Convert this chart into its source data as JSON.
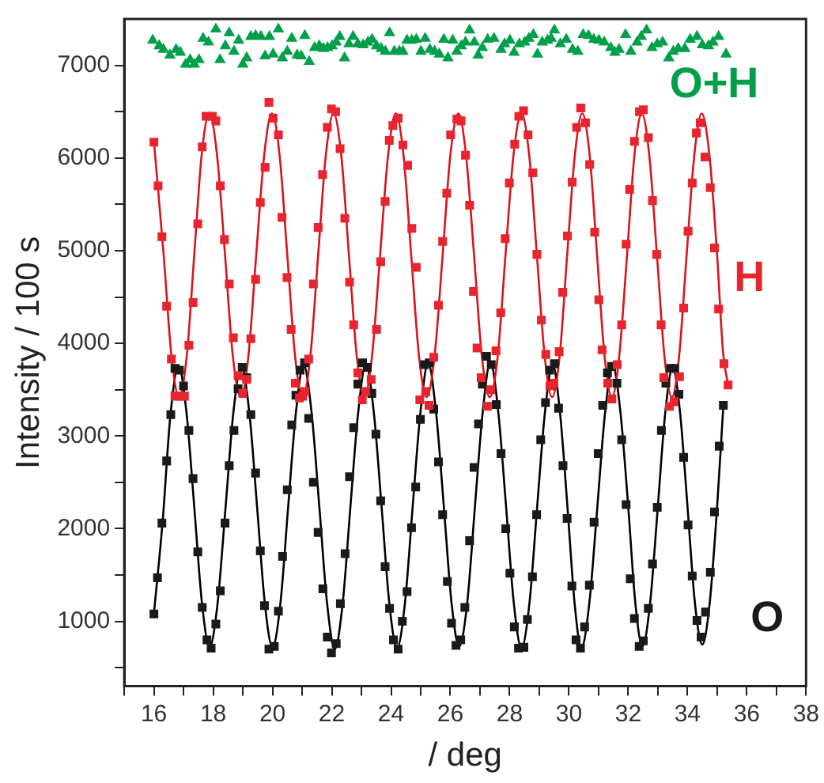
{
  "chart_data": {
    "type": "scatter",
    "xlabel": "/ deg",
    "ylabel": "Intensity / 100 s",
    "xlim": [
      15,
      38
    ],
    "ylim": [
      300,
      7500
    ],
    "xticks": [
      {
        "value": 15,
        "label": null
      },
      16,
      {
        "value": 17,
        "label": null
      },
      18,
      {
        "value": 19,
        "label": null
      },
      20,
      {
        "value": 21,
        "label": null
      },
      22,
      {
        "value": 23,
        "label": null
      },
      24,
      {
        "value": 25,
        "label": null
      },
      26,
      {
        "value": 27,
        "label": null
      },
      28,
      {
        "value": 29,
        "label": null
      },
      30,
      {
        "value": 31,
        "label": null
      },
      32,
      {
        "value": 33,
        "label": null
      },
      34,
      {
        "value": 35,
        "label": null
      },
      36,
      {
        "value": 37,
        "label": null
      },
      38
    ],
    "yticks": [
      {
        "value": 500,
        "label": null
      },
      1000,
      {
        "value": 1500,
        "label": null
      },
      2000,
      {
        "value": 2500,
        "label": null
      },
      3000,
      {
        "value": 3500,
        "label": null
      },
      4000,
      {
        "value": 4500,
        "label": null
      },
      5000,
      {
        "value": 5500,
        "label": null
      },
      6000,
      {
        "value": 6500,
        "label": null
      },
      7000
    ],
    "grid": false,
    "legend": "right",
    "series": [
      {
        "name": "O+H",
        "marker": "triangle",
        "color": "#00a04a",
        "x": [
          15.96,
          16.18,
          16.32,
          16.54,
          16.75,
          16.89,
          17.07,
          17.22,
          17.36,
          17.52,
          17.66,
          17.84,
          18.09,
          18.23,
          18.41,
          18.54,
          18.7,
          18.86,
          19.0,
          19.13,
          19.27,
          19.43,
          19.61,
          19.75,
          19.9,
          20.02,
          20.2,
          20.33,
          20.5,
          20.65,
          20.83,
          20.97,
          21.09,
          21.24,
          21.42,
          21.58,
          21.72,
          21.86,
          22.01,
          22.15,
          22.27,
          22.43,
          22.58,
          22.72,
          22.88,
          23.06,
          23.22,
          23.36,
          23.51,
          23.67,
          23.81,
          23.95,
          24.11,
          24.28,
          24.4,
          24.54,
          24.7,
          24.85,
          25.01,
          25.15,
          25.31,
          25.47,
          25.63,
          25.78,
          25.92,
          26.08,
          26.22,
          26.37,
          26.51,
          26.65,
          26.81,
          26.94,
          27.08,
          27.26,
          27.47,
          27.71,
          27.83,
          28.01,
          28.15,
          28.33,
          28.51,
          28.65,
          28.8,
          28.94,
          29.1,
          29.28,
          29.4,
          29.51,
          29.71,
          29.91,
          30.12,
          30.3,
          30.48,
          30.66,
          30.84,
          31.01,
          31.19,
          31.41,
          31.55,
          31.69,
          31.91,
          32.09,
          32.3,
          32.44,
          32.62,
          32.8,
          32.98,
          33.16,
          33.37,
          33.52,
          33.69,
          33.91,
          34.09,
          34.32,
          34.5,
          34.71,
          34.86,
          35.05,
          35.3
        ],
        "values": [
          7270,
          7210,
          7170,
          7110,
          7170,
          7140,
          7010,
          7060,
          7010,
          7060,
          7290,
          7250,
          7390,
          7060,
          7210,
          7350,
          7150,
          7270,
          7010,
          7080,
          7310,
          7320,
          7310,
          7100,
          7310,
          7120,
          7390,
          7080,
          7150,
          7290,
          7110,
          7100,
          7320,
          7040,
          7190,
          7210,
          7180,
          7190,
          7210,
          7250,
          7310,
          7080,
          7230,
          7310,
          7230,
          7220,
          7250,
          7280,
          7210,
          7180,
          7150,
          7350,
          7150,
          7150,
          7150,
          7270,
          7270,
          7280,
          7150,
          7290,
          7170,
          7150,
          7120,
          7280,
          7080,
          7270,
          7150,
          7210,
          7250,
          7380,
          7250,
          7110,
          7190,
          7280,
          7290,
          7170,
          7230,
          7270,
          7140,
          7230,
          7250,
          7290,
          7330,
          7120,
          7250,
          7270,
          7290,
          7380,
          7230,
          7280,
          7170,
          7150,
          7330,
          7320,
          7280,
          7270,
          7250,
          7190,
          7140,
          7170,
          7330,
          7150,
          7250,
          7310,
          7380,
          7190,
          7230,
          7250,
          7080,
          7150,
          7180,
          7180,
          7280,
          7310,
          7220,
          7210,
          7250,
          7310,
          7120
        ]
      },
      {
        "name": "H",
        "marker": "square",
        "color": "#e8252e",
        "x": [
          16.0,
          16.14,
          16.27,
          16.43,
          16.59,
          16.71,
          16.89,
          17.03,
          17.18,
          17.32,
          17.48,
          17.63,
          17.76,
          17.97,
          18.09,
          18.24,
          18.38,
          18.54,
          18.68,
          18.84,
          19.0,
          19.13,
          19.27,
          19.43,
          19.59,
          19.75,
          19.88,
          20.02,
          20.2,
          20.32,
          20.49,
          20.63,
          20.77,
          20.91,
          21.02,
          21.09,
          21.22,
          21.38,
          21.54,
          21.69,
          21.85,
          21.99,
          22.13,
          22.28,
          22.44,
          22.6,
          22.74,
          22.88,
          23.03,
          23.15,
          23.33,
          23.51,
          23.65,
          23.8,
          23.94,
          24.06,
          24.24,
          24.4,
          24.56,
          24.7,
          24.85,
          24.97,
          25.17,
          25.28,
          25.44,
          25.6,
          25.74,
          25.88,
          26.01,
          26.22,
          26.36,
          26.51,
          26.65,
          26.78,
          26.9,
          27.04,
          27.25,
          27.36,
          27.54,
          27.7,
          27.85,
          27.99,
          28.17,
          28.31,
          28.47,
          28.62,
          28.78,
          28.92,
          29.07,
          29.22,
          29.36,
          29.49,
          29.67,
          29.79,
          29.95,
          30.11,
          30.26,
          30.4,
          30.56,
          30.7,
          30.87,
          31.01,
          31.12,
          31.31,
          31.45,
          31.63,
          31.78,
          31.93,
          32.05,
          32.21,
          32.38,
          32.51,
          32.68,
          32.82,
          32.96,
          33.11,
          33.2,
          33.39,
          33.55,
          33.73,
          33.87,
          34.02,
          34.16,
          34.3,
          34.43,
          34.59,
          34.77,
          34.91,
          35.05,
          35.23,
          35.37
        ],
        "values": [
          6170,
          5700,
          5150,
          4400,
          3830,
          3430,
          3430,
          3430,
          3980,
          4440,
          5290,
          6120,
          6450,
          6450,
          6400,
          5700,
          5120,
          4640,
          4060,
          3650,
          3460,
          3610,
          4050,
          4690,
          5520,
          5900,
          6600,
          6430,
          6250,
          5360,
          4710,
          4150,
          3570,
          3410,
          3430,
          3480,
          3830,
          4640,
          5250,
          5820,
          6330,
          6530,
          6500,
          6100,
          5350,
          4660,
          4200,
          3680,
          3390,
          3480,
          3610,
          4150,
          4880,
          5530,
          6190,
          6350,
          6430,
          6140,
          5920,
          5240,
          4820,
          3390,
          3480,
          3330,
          3850,
          4410,
          5100,
          5620,
          6250,
          6420,
          6400,
          6030,
          5490,
          4560,
          3950,
          3630,
          3320,
          3500,
          3920,
          4330,
          5130,
          5730,
          6150,
          6450,
          6510,
          6250,
          5840,
          4960,
          4250,
          3880,
          3540,
          3570,
          3910,
          4550,
          5160,
          5740,
          6330,
          6540,
          6380,
          5930,
          5200,
          4470,
          3930,
          3570,
          3400,
          3770,
          4200,
          5070,
          5660,
          6180,
          6500,
          6520,
          6220,
          5540,
          4960,
          4200,
          3630,
          3320,
          3370,
          3640,
          4380,
          5210,
          5730,
          6270,
          6380,
          6010,
          5680,
          5030,
          4370,
          3780,
          3550
        ]
      },
      {
        "name": "O",
        "marker": "square",
        "color": "#1a1a1a",
        "x": [
          16.0,
          16.12,
          16.27,
          16.43,
          16.57,
          16.71,
          16.86,
          17.0,
          17.18,
          17.32,
          17.48,
          17.63,
          17.79,
          17.93,
          18.09,
          18.24,
          18.4,
          18.54,
          18.7,
          18.84,
          18.98,
          19.13,
          19.27,
          19.43,
          19.59,
          19.73,
          19.88,
          20.06,
          20.2,
          20.34,
          20.5,
          20.65,
          20.79,
          20.93,
          21.08,
          21.22,
          21.38,
          21.54,
          21.7,
          21.85,
          21.99,
          22.15,
          22.29,
          22.45,
          22.6,
          22.74,
          22.88,
          23.04,
          23.2,
          23.35,
          23.49,
          23.65,
          23.8,
          23.95,
          24.08,
          24.24,
          24.38,
          24.54,
          24.69,
          24.83,
          24.99,
          25.13,
          25.29,
          25.44,
          25.6,
          25.74,
          25.9,
          26.04,
          26.19,
          26.35,
          26.49,
          26.65,
          26.8,
          26.95,
          27.08,
          27.22,
          27.38,
          27.55,
          27.71,
          27.87,
          28.01,
          28.16,
          28.3,
          28.48,
          28.6,
          28.77,
          28.91,
          29.05,
          29.21,
          29.35,
          29.51,
          29.65,
          29.8,
          29.94,
          30.1,
          30.24,
          30.39,
          30.53,
          30.69,
          30.85,
          30.99,
          31.14,
          31.3,
          31.44,
          31.62,
          31.78,
          31.93,
          32.07,
          32.21,
          32.37,
          32.51,
          32.68,
          32.82,
          32.98,
          33.12,
          33.27,
          33.43,
          33.57,
          33.71,
          33.87,
          34.02,
          34.16,
          34.32,
          34.46,
          34.61,
          34.77,
          34.91,
          35.07,
          35.21
        ],
        "values": [
          1080,
          1470,
          2060,
          2730,
          3230,
          3730,
          3710,
          3540,
          3060,
          2540,
          1750,
          1150,
          800,
          710,
          970,
          1330,
          2060,
          2680,
          3060,
          3510,
          3740,
          3630,
          3230,
          2600,
          1760,
          1170,
          700,
          730,
          1110,
          1700,
          2420,
          3120,
          3440,
          3710,
          3790,
          3190,
          2500,
          1960,
          1350,
          830,
          660,
          760,
          1190,
          1730,
          2560,
          3090,
          3560,
          3790,
          3740,
          3460,
          3020,
          2300,
          1590,
          1140,
          800,
          700,
          1000,
          1320,
          2010,
          2450,
          3180,
          3770,
          3790,
          3290,
          2720,
          2150,
          1430,
          980,
          740,
          800,
          1150,
          1870,
          2660,
          3130,
          3560,
          3860,
          3770,
          3340,
          2810,
          2000,
          1520,
          940,
          710,
          720,
          1020,
          1480,
          2150,
          2960,
          3360,
          3710,
          3780,
          3300,
          2680,
          2110,
          1380,
          800,
          710,
          940,
          1390,
          2070,
          2810,
          3330,
          3680,
          3750,
          3570,
          2960,
          2260,
          1460,
          1030,
          730,
          790,
          1140,
          1620,
          2230,
          3060,
          3570,
          3730,
          3730,
          3450,
          2770,
          2040,
          1490,
          1010,
          830,
          1100,
          1530,
          2180,
          2890,
          3330
        ]
      },
      {
        "type": "line",
        "marker": "none",
        "line_style": "solid",
        "color": "#d8141e",
        "x": [
          16.0,
          16.33,
          16.59,
          16.85,
          17.11,
          17.36,
          17.61,
          17.87,
          18.13,
          18.4,
          18.66,
          18.93,
          19.19,
          19.45,
          19.72,
          19.98,
          20.24,
          20.5,
          20.76,
          21.02,
          21.28,
          21.54,
          21.8,
          22.06,
          22.32,
          22.58,
          22.84,
          23.1,
          23.36,
          23.63,
          23.9,
          24.16,
          24.42,
          24.68,
          24.94,
          25.2,
          25.47,
          25.74,
          26.0,
          26.27,
          26.53,
          26.8,
          27.06,
          27.33,
          27.6,
          27.86,
          28.13,
          28.4,
          28.66,
          28.92,
          29.18,
          29.43,
          29.69,
          29.94,
          30.2,
          30.45,
          30.7,
          30.95,
          31.2,
          31.45,
          31.7,
          31.96,
          32.21,
          32.46,
          32.71,
          32.97,
          33.22,
          33.47,
          33.72,
          33.97,
          34.23,
          34.48,
          34.74,
          35.0,
          35.2,
          35.37
        ],
        "values": [
          6180,
          4950,
          3870,
          3420,
          3870,
          4950,
          6030,
          6480,
          6030,
          4950,
          3870,
          3420,
          3870,
          4950,
          6030,
          6480,
          6030,
          4950,
          3870,
          3420,
          3870,
          4950,
          6030,
          6480,
          6030,
          4950,
          3870,
          3420,
          3870,
          4950,
          6030,
          6480,
          6030,
          4950,
          3870,
          3420,
          3870,
          4950,
          6030,
          6480,
          6030,
          4950,
          3870,
          3420,
          3870,
          4950,
          6030,
          6480,
          6030,
          4950,
          3870,
          3420,
          3870,
          4950,
          6030,
          6480,
          6030,
          4950,
          3870,
          3420,
          3870,
          4950,
          6030,
          6480,
          6030,
          4950,
          3870,
          3420,
          3870,
          4950,
          6030,
          6480,
          6030,
          4950,
          3900,
          3550
        ]
      },
      {
        "type": "line",
        "marker": "none",
        "line_style": "solid",
        "color": "#000000",
        "x": [
          16.0,
          16.3,
          16.55,
          16.83,
          17.1,
          17.36,
          17.62,
          17.88,
          18.15,
          18.42,
          18.68,
          18.95,
          19.22,
          19.48,
          19.74,
          20.0,
          20.27,
          20.53,
          20.79,
          21.05,
          21.32,
          21.58,
          21.84,
          22.1,
          22.37,
          22.63,
          22.89,
          23.15,
          23.42,
          23.68,
          23.94,
          24.2,
          24.47,
          24.73,
          24.99,
          25.25,
          25.52,
          25.78,
          26.04,
          26.3,
          26.57,
          26.83,
          27.09,
          27.35,
          27.62,
          27.88,
          28.14,
          28.4,
          28.67,
          28.93,
          29.19,
          29.45,
          29.7,
          29.95,
          30.19,
          30.42,
          30.69,
          30.96,
          31.22,
          31.48,
          31.74,
          32.0,
          32.24,
          32.48,
          32.74,
          33.0,
          33.25,
          33.5,
          33.75,
          34.0,
          34.25,
          34.5,
          34.75,
          35.0,
          35.21
        ],
        "values": [
          1080,
          2100,
          3200,
          3760,
          3250,
          2240,
          1200,
          720,
          1200,
          2240,
          3250,
          3760,
          3250,
          2240,
          1200,
          720,
          1200,
          2240,
          3250,
          3770,
          3250,
          2240,
          1200,
          700,
          1200,
          2240,
          3250,
          3780,
          3250,
          2240,
          1200,
          710,
          1200,
          2240,
          3250,
          3790,
          3250,
          2240,
          1200,
          730,
          1200,
          2240,
          3250,
          3800,
          3250,
          2240,
          1200,
          710,
          1200,
          2240,
          3250,
          3780,
          3250,
          2240,
          1200,
          710,
          1200,
          2240,
          3250,
          3760,
          3250,
          2240,
          1200,
          730,
          1200,
          2240,
          3250,
          3740,
          3250,
          2240,
          1200,
          750,
          1200,
          2240,
          3330
        ]
      }
    ]
  }
}
